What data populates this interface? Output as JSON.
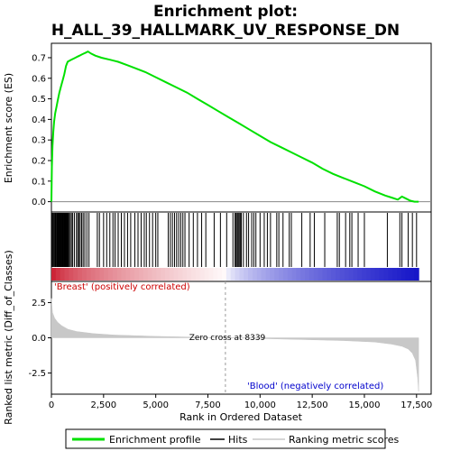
{
  "title_line1": "Enrichment plot:",
  "title_line2": "H_ALL_39_HALLMARK_UV_RESPONSE_DN",
  "chart_data": {
    "type": "line",
    "es_panel": {
      "ylabel": "Enrichment score (ES)",
      "ylim": [
        -0.05,
        0.77
      ],
      "yticks": [
        0.0,
        0.1,
        0.2,
        0.3,
        0.4,
        0.5,
        0.6,
        0.7
      ],
      "ytick_labels": [
        "0.0",
        "0.1",
        "0.2",
        "0.3",
        "0.4",
        "0.5",
        "0.6",
        "0.7"
      ],
      "series": [
        {
          "name": "Enrichment profile",
          "color": "#00e000",
          "x": [
            0,
            20,
            50,
            90,
            130,
            180,
            240,
            300,
            380,
            460,
            540,
            620,
            700,
            780,
            860,
            950,
            1050,
            1150,
            1250,
            1350,
            1450,
            1550,
            1650,
            1750,
            1900,
            2100,
            2400,
            2800,
            3200,
            3600,
            4000,
            4500,
            5000,
            5500,
            6000,
            6500,
            7000,
            7500,
            8000,
            8500,
            9000,
            9500,
            10000,
            10500,
            11000,
            11500,
            12000,
            12500,
            13000,
            13500,
            14000,
            14500,
            15000,
            15500,
            16000,
            16300,
            16600,
            16800,
            17000,
            17200,
            17400,
            17600
          ],
          "y": [
            0.0,
            0.17,
            0.27,
            0.34,
            0.39,
            0.43,
            0.46,
            0.49,
            0.53,
            0.56,
            0.59,
            0.62,
            0.66,
            0.68,
            0.685,
            0.69,
            0.695,
            0.7,
            0.705,
            0.71,
            0.715,
            0.72,
            0.725,
            0.73,
            0.72,
            0.71,
            0.7,
            0.69,
            0.68,
            0.665,
            0.65,
            0.63,
            0.605,
            0.58,
            0.555,
            0.53,
            0.5,
            0.47,
            0.44,
            0.41,
            0.38,
            0.35,
            0.32,
            0.29,
            0.265,
            0.24,
            0.215,
            0.19,
            0.16,
            0.135,
            0.115,
            0.095,
            0.075,
            0.05,
            0.03,
            0.02,
            0.01,
            0.025,
            0.015,
            0.005,
            0.0,
            0.0
          ]
        }
      ]
    },
    "hits": [
      20,
      60,
      100,
      140,
      180,
      210,
      250,
      280,
      310,
      340,
      370,
      400,
      430,
      460,
      490,
      520,
      550,
      580,
      610,
      640,
      670,
      700,
      730,
      760,
      800,
      850,
      900,
      960,
      1020,
      1100,
      1200,
      1260,
      1320,
      1380,
      1450,
      1520,
      1600,
      1700,
      1800,
      2200,
      2300,
      2500,
      2650,
      2800,
      2950,
      3050,
      3200,
      3350,
      3500,
      3650,
      3800,
      4000,
      4150,
      4300,
      4450,
      4550,
      4700,
      4850,
      5000,
      5100,
      5600,
      5700,
      5800,
      5900,
      6000,
      6100,
      6200,
      6300,
      6400,
      6600,
      6800,
      7000,
      7200,
      7400,
      7800,
      8100,
      8400,
      8700,
      8800,
      8850,
      8900,
      8950,
      9000,
      9050,
      9100,
      9200,
      9350,
      9450,
      9600,
      9700,
      9800,
      10000,
      10200,
      10350,
      10500,
      10800,
      10900,
      11100,
      11400,
      11500,
      12000,
      12400,
      12600,
      13100,
      13700,
      13800,
      14100,
      14300,
      14400,
      14700,
      15000,
      16100,
      16700,
      16800,
      17100,
      17300,
      17500
    ],
    "metric_panel": {
      "ylabel": "Ranked list metric (Diff_of_Classes)",
      "ylim": [
        -4.0,
        4.0
      ],
      "yticks": [
        2.5,
        0.0,
        -2.5
      ],
      "ytick_labels": [
        "2.5",
        "0.0",
        "-2.5"
      ],
      "x": [
        0,
        50,
        150,
        300,
        500,
        800,
        1200,
        2000,
        3000,
        5000,
        7000,
        8339,
        10000,
        12000,
        14000,
        15500,
        16300,
        16800,
        17100,
        17300,
        17450,
        17550,
        17600
      ],
      "y": [
        2.8,
        1.8,
        1.4,
        1.1,
        0.85,
        0.6,
        0.45,
        0.3,
        0.2,
        0.1,
        0.04,
        0.0,
        -0.05,
        -0.12,
        -0.2,
        -0.3,
        -0.45,
        -0.6,
        -0.8,
        -1.1,
        -1.6,
        -2.8,
        -3.8
      ],
      "fill_color": "#c8c8c8",
      "zero_cross_label": "Zero cross at 8339",
      "zero_cross_x": 8339,
      "positive_label": "'Breast' (positively correlated)",
      "negative_label": "'Blood' (negatively correlated)"
    },
    "xaxis": {
      "xlabel": "Rank in Ordered Dataset",
      "xlim": [
        0,
        18200
      ],
      "xticks": [
        0,
        2500,
        5000,
        7500,
        10000,
        12500,
        15000,
        17500
      ],
      "xtick_labels": [
        "0",
        "2,500",
        "5,000",
        "7,500",
        "10,000",
        "12,500",
        "15,000",
        "17,500"
      ]
    },
    "legend": {
      "placement": "bottom",
      "entries": [
        {
          "label": "Enrichment profile",
          "color": "#00e000"
        },
        {
          "label": "Hits",
          "color": "#000000"
        },
        {
          "label": "Ranking metric scores",
          "color": "#c8c8c8"
        }
      ]
    }
  }
}
